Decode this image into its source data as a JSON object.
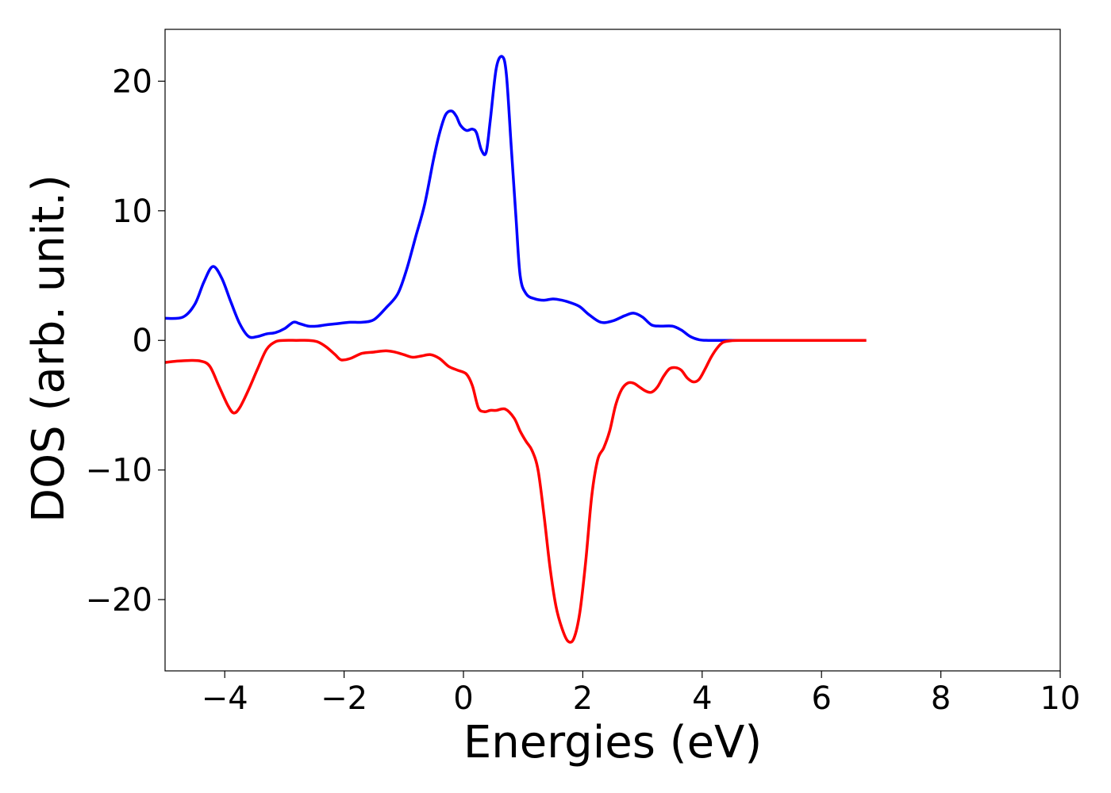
{
  "chart_data": {
    "type": "line",
    "title": "",
    "xlabel": "Energies (eV)",
    "ylabel": "DOS (arb. unit.)",
    "xlim": [
      -5,
      10
    ],
    "ylim": [
      -25.5,
      24
    ],
    "xticks": [
      -4,
      -2,
      0,
      2,
      4,
      6,
      8,
      10
    ],
    "yticks": [
      -20,
      -10,
      0,
      10,
      20
    ],
    "grid": false,
    "legend": "none",
    "series": [
      {
        "color": "#0000ff",
        "x": [
          -5,
          -4.7,
          -4.5,
          -4.35,
          -4.2,
          -4.05,
          -3.9,
          -3.75,
          -3.6,
          -3.45,
          -3.3,
          -3.15,
          -3.0,
          -2.85,
          -2.75,
          -2.6,
          -2.45,
          -2.3,
          -2.1,
          -1.9,
          -1.7,
          -1.5,
          -1.3,
          -1.1,
          -0.95,
          -0.8,
          -0.65,
          -0.5,
          -0.4,
          -0.3,
          -0.2,
          -0.12,
          -0.05,
          0.05,
          0.15,
          0.22,
          0.3,
          0.38,
          0.45,
          0.55,
          0.65,
          0.72,
          0.8,
          0.88,
          0.95,
          1.05,
          1.2,
          1.35,
          1.5,
          1.65,
          1.8,
          1.95,
          2.1,
          2.3,
          2.5,
          2.7,
          2.85,
          3.0,
          3.15,
          3.3,
          3.5,
          3.65,
          3.8,
          3.95,
          4.1,
          4.3,
          4.5,
          5.0,
          5.5,
          6.0,
          6.5,
          6.75
        ],
        "y": [
          1.7,
          1.8,
          2.8,
          4.5,
          5.7,
          4.8,
          3.0,
          1.3,
          0.3,
          0.3,
          0.5,
          0.6,
          0.9,
          1.4,
          1.3,
          1.1,
          1.1,
          1.2,
          1.3,
          1.4,
          1.4,
          1.6,
          2.5,
          3.6,
          5.5,
          8.0,
          10.5,
          14.0,
          16.0,
          17.4,
          17.7,
          17.3,
          16.6,
          16.2,
          16.3,
          16.0,
          14.7,
          14.5,
          17.0,
          21.0,
          21.9,
          20.5,
          15.0,
          9.5,
          5.0,
          3.6,
          3.2,
          3.1,
          3.2,
          3.1,
          2.9,
          2.6,
          2.0,
          1.4,
          1.5,
          1.9,
          2.1,
          1.8,
          1.2,
          1.1,
          1.1,
          0.8,
          0.3,
          0.05,
          0.0,
          0.0,
          0.0,
          0.0,
          0.0,
          0.0,
          0.0,
          0.0
        ]
      },
      {
        "color": "#ff0000",
        "x": [
          -5,
          -4.8,
          -4.6,
          -4.4,
          -4.25,
          -4.1,
          -3.95,
          -3.85,
          -3.75,
          -3.6,
          -3.45,
          -3.3,
          -3.15,
          -3.0,
          -2.8,
          -2.6,
          -2.45,
          -2.3,
          -2.15,
          -2.05,
          -1.9,
          -1.7,
          -1.5,
          -1.3,
          -1.15,
          -1.0,
          -0.85,
          -0.7,
          -0.55,
          -0.4,
          -0.25,
          -0.1,
          0.05,
          0.15,
          0.25,
          0.35,
          0.45,
          0.55,
          0.7,
          0.85,
          0.95,
          1.05,
          1.15,
          1.25,
          1.35,
          1.45,
          1.55,
          1.65,
          1.75,
          1.85,
          1.95,
          2.05,
          2.15,
          2.25,
          2.35,
          2.45,
          2.55,
          2.65,
          2.75,
          2.85,
          2.95,
          3.05,
          3.15,
          3.25,
          3.35,
          3.45,
          3.55,
          3.65,
          3.75,
          3.85,
          3.95,
          4.05,
          4.15,
          4.25,
          4.35,
          4.5,
          4.7,
          5.0,
          5.5,
          6.0,
          6.5,
          6.75
        ],
        "y": [
          -1.7,
          -1.6,
          -1.55,
          -1.6,
          -2.0,
          -3.5,
          -5.0,
          -5.6,
          -5.2,
          -3.8,
          -2.2,
          -0.7,
          -0.1,
          0.0,
          0.0,
          0.0,
          -0.1,
          -0.5,
          -1.1,
          -1.5,
          -1.4,
          -1.0,
          -0.9,
          -0.8,
          -0.9,
          -1.1,
          -1.3,
          -1.2,
          -1.1,
          -1.4,
          -2.0,
          -2.3,
          -2.6,
          -3.5,
          -5.2,
          -5.5,
          -5.4,
          -5.4,
          -5.3,
          -6.0,
          -7.0,
          -7.8,
          -8.5,
          -10.0,
          -13.5,
          -17.5,
          -20.5,
          -22.2,
          -23.2,
          -23.0,
          -21.0,
          -17.0,
          -12.0,
          -9.2,
          -8.3,
          -7.0,
          -5.0,
          -3.8,
          -3.3,
          -3.3,
          -3.6,
          -3.9,
          -4.0,
          -3.6,
          -2.8,
          -2.2,
          -2.1,
          -2.3,
          -2.9,
          -3.2,
          -3.0,
          -2.2,
          -1.3,
          -0.6,
          -0.15,
          -0.02,
          0.0,
          0.0,
          0.0,
          0.0,
          0.0,
          0.0
        ]
      }
    ]
  }
}
